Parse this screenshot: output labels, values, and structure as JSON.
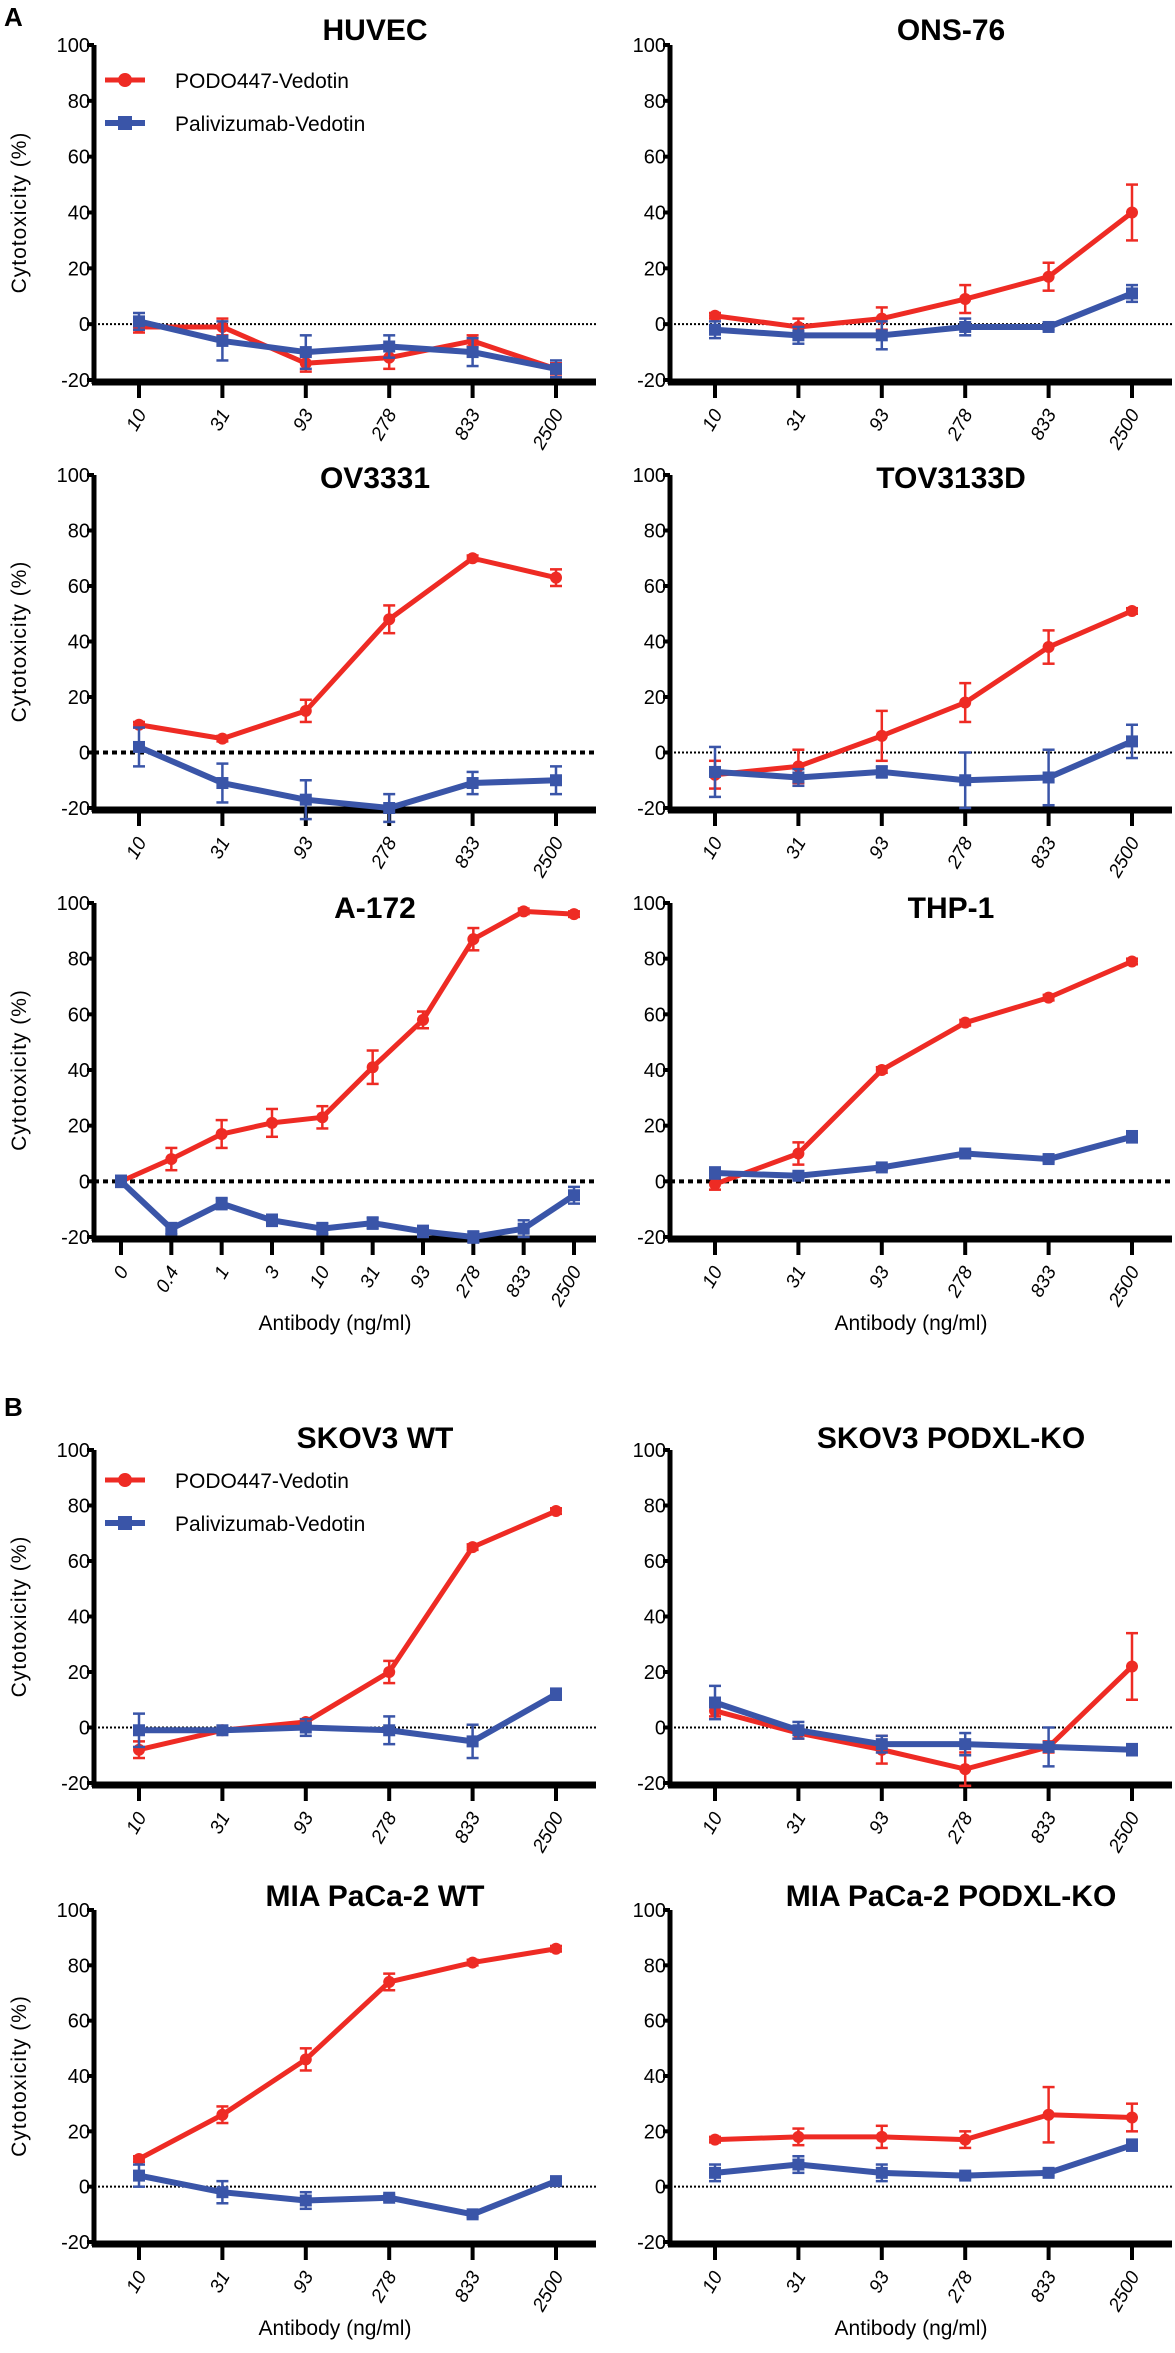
{
  "figure_labels": {
    "a": "A",
    "b": "B"
  },
  "legend": {
    "red": "PODO447-Vedotin",
    "blue": "Palivizumab-Vedotin"
  },
  "colors": {
    "red": "#ee2b24",
    "blue": "#3a55a8",
    "axis": "#000000"
  },
  "chart_data": [
    {
      "type": "line",
      "title": "HUVEC",
      "ylabel": "Cytotoxicity (%)",
      "xlabel": "",
      "ylim": [
        -20,
        100
      ],
      "yticks": [
        -20,
        0,
        20,
        40,
        60,
        80,
        100
      ],
      "categories": [
        "10",
        "31",
        "93",
        "278",
        "833",
        "2500"
      ],
      "zero_line": "dotted",
      "legend": "top-left",
      "series": [
        {
          "name": "PODO447-Vedotin",
          "values": [
            -1,
            -1,
            -14,
            -12,
            -6,
            -16
          ],
          "errors": [
            2,
            3,
            3,
            4,
            2,
            2
          ]
        },
        {
          "name": "Palivizumab-Vedotin",
          "values": [
            1,
            -6,
            -10,
            -8,
            -10,
            -16
          ],
          "errors": [
            3,
            7,
            6,
            4,
            5,
            3
          ]
        }
      ]
    },
    {
      "type": "line",
      "title": "ONS-76",
      "ylabel": "",
      "xlabel": "",
      "ylim": [
        -20,
        100
      ],
      "yticks": [
        -20,
        0,
        20,
        40,
        60,
        80,
        100
      ],
      "categories": [
        "10",
        "31",
        "93",
        "278",
        "833",
        "2500"
      ],
      "zero_line": "dotted",
      "series": [
        {
          "name": "PODO447-Vedotin",
          "values": [
            3,
            -1,
            2,
            9,
            17,
            40
          ],
          "errors": [
            1,
            3,
            4,
            5,
            5,
            10
          ]
        },
        {
          "name": "Palivizumab-Vedotin",
          "values": [
            -2,
            -4,
            -4,
            -1,
            -1,
            11
          ],
          "errors": [
            3,
            3,
            5,
            3,
            1,
            3
          ]
        }
      ]
    },
    {
      "type": "line",
      "title": "OV3331",
      "ylabel": "Cytotoxicity (%)",
      "xlabel": "",
      "ylim": [
        -20,
        100
      ],
      "yticks": [
        -20,
        0,
        20,
        40,
        60,
        80,
        100
      ],
      "categories": [
        "10",
        "31",
        "93",
        "278",
        "833",
        "2500"
      ],
      "zero_line": "dashed",
      "series": [
        {
          "name": "PODO447-Vedotin",
          "values": [
            10,
            5,
            15,
            48,
            70,
            63
          ],
          "errors": [
            1,
            1,
            4,
            5,
            1,
            3
          ]
        },
        {
          "name": "Palivizumab-Vedotin",
          "values": [
            2,
            -11,
            -17,
            -20,
            -11,
            -10
          ],
          "errors": [
            7,
            7,
            7,
            5,
            4,
            5
          ]
        }
      ]
    },
    {
      "type": "line",
      "title": "TOV3133D",
      "ylabel": "",
      "xlabel": "",
      "ylim": [
        -20,
        100
      ],
      "yticks": [
        -20,
        0,
        20,
        40,
        60,
        80,
        100
      ],
      "categories": [
        "10",
        "31",
        "93",
        "278",
        "833",
        "2500"
      ],
      "zero_line": "dotted",
      "series": [
        {
          "name": "PODO447-Vedotin",
          "values": [
            -8,
            -5,
            6,
            18,
            38,
            51
          ],
          "errors": [
            5,
            6,
            9,
            7,
            6,
            1
          ]
        },
        {
          "name": "Palivizumab-Vedotin",
          "values": [
            -7,
            -9,
            -7,
            -10,
            -9,
            4
          ],
          "errors": [
            9,
            3,
            2,
            10,
            10,
            6
          ]
        }
      ]
    },
    {
      "type": "line",
      "title": "A-172",
      "ylabel": "Cytotoxicity (%)",
      "xlabel": "Antibody (ng/ml)",
      "ylim": [
        -20,
        100
      ],
      "yticks": [
        -20,
        0,
        20,
        40,
        60,
        80,
        100
      ],
      "categories": [
        "0",
        "0.4",
        "1",
        "3",
        "10",
        "31",
        "93",
        "278",
        "833",
        "2500"
      ],
      "zero_line": "dashed",
      "series": [
        {
          "name": "PODO447-Vedotin",
          "values": [
            0,
            8,
            17,
            21,
            23,
            41,
            58,
            87,
            97,
            96
          ],
          "errors": [
            1,
            4,
            5,
            5,
            4,
            6,
            3,
            4,
            1,
            1
          ]
        },
        {
          "name": "Palivizumab-Vedotin",
          "values": [
            0,
            -17,
            -8,
            -14,
            -17,
            -15,
            -18,
            -20,
            -17,
            -5
          ],
          "errors": [
            2,
            2,
            2,
            2,
            2,
            2,
            2,
            2,
            3,
            3
          ]
        }
      ]
    },
    {
      "type": "line",
      "title": "THP-1",
      "ylabel": "",
      "xlabel": "Antibody (ng/ml)",
      "ylim": [
        -20,
        100
      ],
      "yticks": [
        -20,
        0,
        20,
        40,
        60,
        80,
        100
      ],
      "categories": [
        "10",
        "31",
        "93",
        "278",
        "833",
        "2500"
      ],
      "zero_line": "dashed",
      "series": [
        {
          "name": "PODO447-Vedotin",
          "values": [
            -1,
            10,
            40,
            57,
            66,
            79
          ],
          "errors": [
            2,
            4,
            1,
            1,
            1,
            1
          ]
        },
        {
          "name": "Palivizumab-Vedotin",
          "values": [
            3,
            2,
            5,
            10,
            8,
            16
          ],
          "errors": [
            2,
            1,
            1,
            1,
            1,
            2
          ]
        }
      ]
    },
    {
      "type": "line",
      "title": "SKOV3 WT",
      "ylabel": "Cytotoxicity (%)",
      "xlabel": "",
      "ylim": [
        -20,
        100
      ],
      "yticks": [
        -20,
        0,
        20,
        40,
        60,
        80,
        100
      ],
      "categories": [
        "10",
        "31",
        "93",
        "278",
        "833",
        "2500"
      ],
      "zero_line": "dotted",
      "legend": "top-left",
      "series": [
        {
          "name": "PODO447-Vedotin",
          "values": [
            -8,
            -1,
            2,
            20,
            65,
            78
          ],
          "errors": [
            3,
            1,
            1,
            4,
            1,
            1
          ]
        },
        {
          "name": "Palivizumab-Vedotin",
          "values": [
            -1,
            -1,
            0,
            -1,
            -5,
            12
          ],
          "errors": [
            6,
            1,
            3,
            5,
            6,
            2
          ]
        }
      ]
    },
    {
      "type": "line",
      "title": "SKOV3 PODXL-KO",
      "ylabel": "",
      "xlabel": "",
      "ylim": [
        -20,
        100
      ],
      "yticks": [
        -20,
        0,
        20,
        40,
        60,
        80,
        100
      ],
      "categories": [
        "10",
        "31",
        "93",
        "278",
        "833",
        "2500"
      ],
      "zero_line": "dotted",
      "series": [
        {
          "name": "PODO447-Vedotin",
          "values": [
            6,
            -2,
            -8,
            -15,
            -7,
            22
          ],
          "errors": [
            2,
            2,
            5,
            6,
            2,
            12
          ]
        },
        {
          "name": "Palivizumab-Vedotin",
          "values": [
            9,
            -1,
            -6,
            -6,
            -7,
            -8
          ],
          "errors": [
            6,
            3,
            3,
            4,
            7,
            2
          ]
        }
      ]
    },
    {
      "type": "line",
      "title": "MIA PaCa-2 WT",
      "ylabel": "Cytotoxicity (%)",
      "xlabel": "Antibody (ng/ml)",
      "ylim": [
        -20,
        100
      ],
      "yticks": [
        -20,
        0,
        20,
        40,
        60,
        80,
        100
      ],
      "categories": [
        "10",
        "31",
        "93",
        "278",
        "833",
        "2500"
      ],
      "zero_line": "dotted",
      "series": [
        {
          "name": "PODO447-Vedotin",
          "values": [
            10,
            26,
            46,
            74,
            81,
            86
          ],
          "errors": [
            1,
            3,
            4,
            3,
            1,
            1
          ]
        },
        {
          "name": "Palivizumab-Vedotin",
          "values": [
            4,
            -2,
            -5,
            -4,
            -10,
            2
          ],
          "errors": [
            4,
            4,
            3,
            1,
            1,
            1
          ]
        }
      ]
    },
    {
      "type": "line",
      "title": "MIA PaCa-2 PODXL-KO",
      "ylabel": "",
      "xlabel": "Antibody (ng/ml)",
      "ylim": [
        -20,
        100
      ],
      "yticks": [
        -20,
        0,
        20,
        40,
        60,
        80,
        100
      ],
      "categories": [
        "10",
        "31",
        "93",
        "278",
        "833",
        "2500"
      ],
      "zero_line": "dotted",
      "series": [
        {
          "name": "PODO447-Vedotin",
          "values": [
            17,
            18,
            18,
            17,
            26,
            25
          ],
          "errors": [
            1,
            3,
            4,
            3,
            10,
            5
          ]
        },
        {
          "name": "Palivizumab-Vedotin",
          "values": [
            5,
            8,
            5,
            4,
            5,
            15
          ],
          "errors": [
            3,
            3,
            3,
            1,
            1,
            2
          ]
        }
      ]
    }
  ]
}
